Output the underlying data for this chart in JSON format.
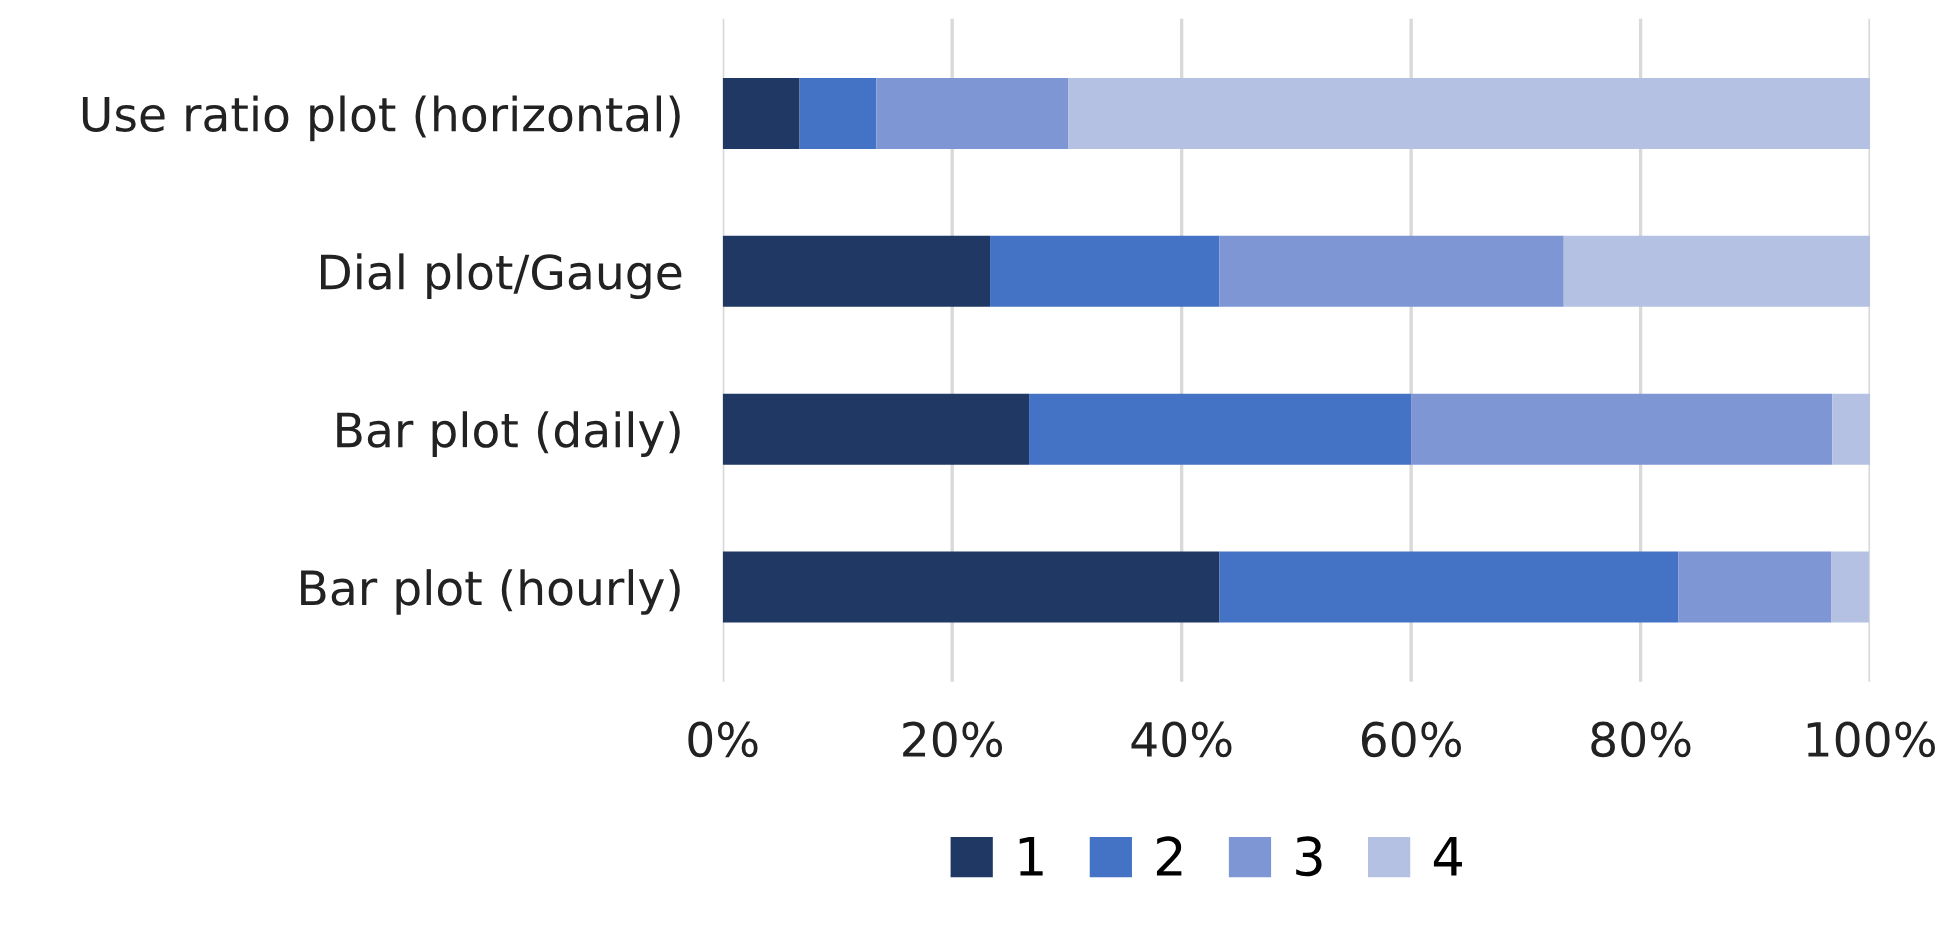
{
  "chart_data": {
    "type": "bar",
    "orientation": "horizontal",
    "stacked": true,
    "categories": [
      "Use ratio plot (horizontal)",
      "Dial plot/Gauge",
      "Bar plot (daily)",
      "Bar plot (hourly)"
    ],
    "series": [
      {
        "name": "1",
        "color": "#203864",
        "values": [
          6.7,
          23.3,
          26.7,
          43.3
        ]
      },
      {
        "name": "2",
        "color": "#4472c4",
        "values": [
          6.7,
          20,
          33.3,
          40
        ]
      },
      {
        "name": "3",
        "color": "#7f96d4",
        "values": [
          16.7,
          30,
          36.7,
          13.3
        ]
      },
      {
        "name": "4",
        "color": "#b4c1e2",
        "values": [
          69.9,
          26.7,
          3.3,
          3.3
        ]
      }
    ],
    "xlim": [
      0,
      100
    ],
    "xticks": [
      {
        "value": 0,
        "label": "0%"
      },
      {
        "value": 20,
        "label": "20%"
      },
      {
        "value": 40,
        "label": "40%"
      },
      {
        "value": 60,
        "label": "60%"
      },
      {
        "value": 80,
        "label": "80%"
      },
      {
        "value": 100,
        "label": "100%"
      }
    ],
    "grid": "x",
    "legend": "bottom"
  }
}
